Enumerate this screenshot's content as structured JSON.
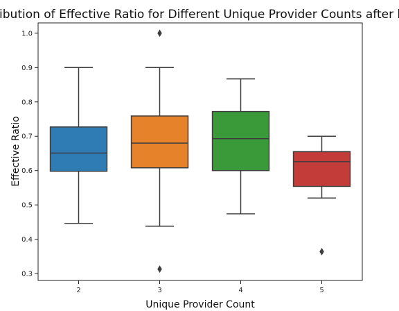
{
  "chart_data": {
    "type": "box",
    "title": "Distribution of Effective Ratio for Different Unique Provider Counts after hours",
    "xlabel": "Unique Provider Count",
    "ylabel": "Effective Ratio",
    "ylim": [
      0.28,
      1.03
    ],
    "yticks": [
      "0.3",
      "0.4",
      "0.5",
      "0.6",
      "0.7",
      "0.8",
      "0.9",
      "1.0"
    ],
    "grid": false,
    "categories": [
      "2",
      "3",
      "4",
      "5"
    ],
    "boxes": [
      {
        "category": "2",
        "whisker_low": 0.446,
        "q1": 0.598,
        "median": 0.651,
        "q3": 0.727,
        "whisker_high": 0.9,
        "outliers": [],
        "color": "#2f7bb4"
      },
      {
        "category": "3",
        "whisker_low": 0.438,
        "q1": 0.608,
        "median": 0.68,
        "q3": 0.759,
        "whisker_high": 0.9,
        "outliers": [
          1.0,
          0.313
        ],
        "color": "#e6822a"
      },
      {
        "category": "4",
        "whisker_low": 0.474,
        "q1": 0.6,
        "median": 0.693,
        "q3": 0.772,
        "whisker_high": 0.867,
        "outliers": [],
        "color": "#3a9a3a"
      },
      {
        "category": "5",
        "whisker_low": 0.52,
        "q1": 0.554,
        "median": 0.626,
        "q3": 0.655,
        "whisker_high": 0.7,
        "outliers": [
          0.364
        ],
        "color": "#c43c39"
      }
    ]
  }
}
